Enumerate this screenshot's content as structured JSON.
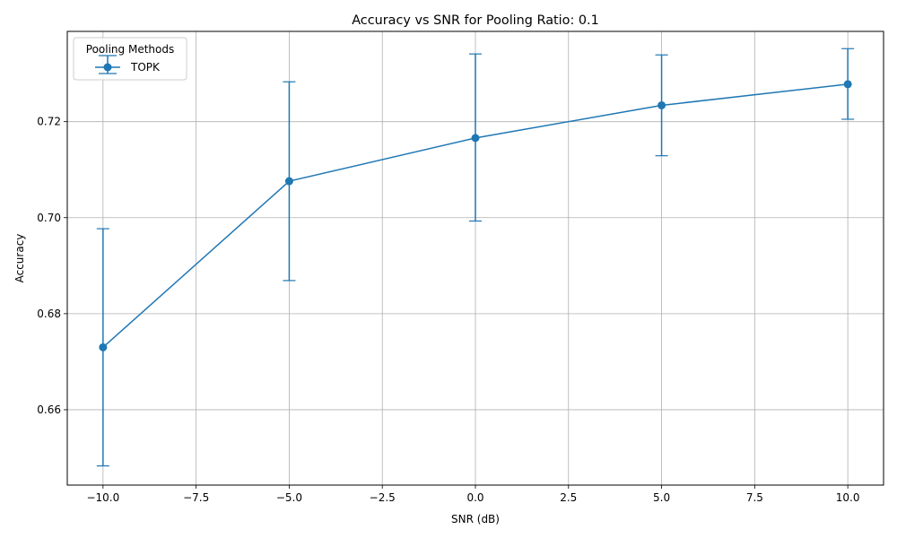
{
  "chart_data": {
    "type": "line",
    "title": "Accuracy vs SNR for Pooling Ratio: 0.1",
    "xlabel": "SNR (dB)",
    "ylabel": "Accuracy",
    "xlim": [
      -10.96,
      10.96
    ],
    "ylim": [
      0.6443,
      0.7388
    ],
    "xticks": [
      -10.0,
      -7.5,
      -5.0,
      -2.5,
      0.0,
      2.5,
      5.0,
      7.5,
      10.0
    ],
    "xtick_labels": [
      "−10.0",
      "−7.5",
      "−5.0",
      "−2.5",
      "0.0",
      "2.5",
      "5.0",
      "7.5",
      "10.0"
    ],
    "yticks": [
      0.66,
      0.68,
      0.7,
      0.72
    ],
    "ytick_labels": [
      "0.66",
      "0.68",
      "0.70",
      "0.72"
    ],
    "grid": true,
    "legend": {
      "title": "Pooling Methods",
      "placement": "top-left"
    },
    "series": [
      {
        "name": "TOPK",
        "color": "#1f77b4",
        "marker": "circle",
        "x": [
          -10,
          -5,
          0,
          5,
          10
        ],
        "y": [
          0.673,
          0.7076,
          0.7166,
          0.7234,
          0.7278
        ],
        "yerr_low": [
          0.6483,
          0.6869,
          0.6993,
          0.7129,
          0.7205
        ],
        "yerr_high": [
          0.6977,
          0.7283,
          0.7341,
          0.7339,
          0.7352
        ]
      }
    ]
  }
}
